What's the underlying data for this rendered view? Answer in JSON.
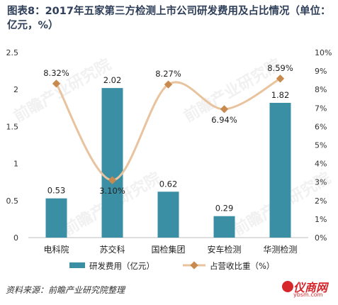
{
  "title": "图表8：2017年五家第三方检测上市公司研发费用及占比情况（单位：亿元，%）",
  "source": "资料来源：前瞻产业研究院整理",
  "logo": {
    "main": "仪商网",
    "sub": "ybsm.com"
  },
  "watermark": "前瞻产业研究院",
  "colors": {
    "bar": "#3b8fa5",
    "line": "#e8c39e",
    "marker": "#c98a4f"
  },
  "chart_data": {
    "type": "bar",
    "categories": [
      "电科院",
      "苏交科",
      "国检集团",
      "安车检测",
      "华测检测"
    ],
    "series": [
      {
        "name": "研发费用（亿元）",
        "type": "bar",
        "axis": "left",
        "values": [
          0.53,
          2.02,
          0.62,
          0.29,
          1.82
        ],
        "labels": [
          "0.53",
          "2.02",
          "0.62",
          "0.29",
          "1.82"
        ]
      },
      {
        "name": "占营收比重（%）",
        "type": "line",
        "axis": "right",
        "values": [
          8.32,
          3.1,
          8.27,
          6.94,
          8.59
        ],
        "labels": [
          "8.32%",
          "3.10%",
          "8.27%",
          "6.94%",
          "8.59%"
        ]
      }
    ],
    "left_axis": {
      "min": 0,
      "max": 2.5,
      "ticks": [
        "0",
        "0.5",
        "1",
        "1.5",
        "2",
        "2.5"
      ]
    },
    "right_axis": {
      "min": 0,
      "max": 10,
      "ticks": [
        "0%",
        "1%",
        "2%",
        "3%",
        "4%",
        "5%",
        "6%",
        "7%",
        "8%",
        "9%",
        "10%"
      ]
    },
    "legend_position": "bottom"
  }
}
